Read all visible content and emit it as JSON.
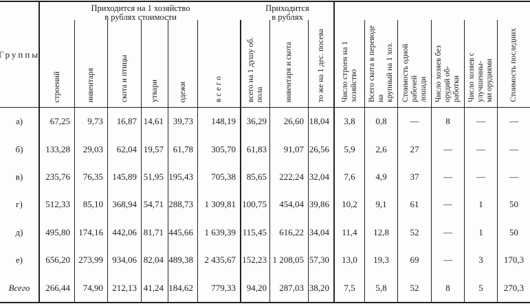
{
  "colors": {
    "ink": "#1c1c1c",
    "rule": "#222222",
    "paper": "#fdfdfd"
  },
  "table": {
    "header": {
      "corner": "Группы",
      "group1": {
        "title": "Приходится на 1 хозяйство\nв рублях стоимости",
        "cols": [
          "строений",
          "инвентаря",
          "скота и птицы",
          "утвари",
          "одежи",
          "всего"
        ]
      },
      "group2": {
        "title": "Приходится\nв рублях",
        "cols": [
          "всего на 1 душу об.\nпола",
          "инвентаря и скота",
          "то же на 1 дес. посева"
        ]
      },
      "single_cols": [
        "Число строен на 1\nхозяйство",
        "Всего скота в переводе на\nкрупный на 1 хоз.",
        "Стоимость одной рабочей\nлошади",
        "Число хозяев без орудий об-\nработки",
        "Число хозяев с улучшенны-\nми орудиями",
        "Стоимость последних"
      ]
    },
    "rows": [
      {
        "label": "а)",
        "values": [
          "67,25",
          "9,73",
          "16,87",
          "14,61",
          "39,73",
          "148,19",
          "36,29",
          "26,60",
          "18,04",
          "3,8",
          "0,8",
          "—",
          "8",
          "—",
          "—"
        ]
      },
      {
        "label": "б)",
        "values": [
          "133,28",
          "29,03",
          "62,04",
          "19,57",
          "61,78",
          "305,70",
          "61,83",
          "91,07",
          "26,56",
          "5,9",
          "2,6",
          "27",
          "—",
          "—",
          "—"
        ]
      },
      {
        "label": "в)",
        "values": [
          "235,76",
          "76,35",
          "145,89",
          "51,95",
          "195,43",
          "705,38",
          "85,65",
          "222,24",
          "32,04",
          "7,6",
          "4,9",
          "37",
          "—",
          "—",
          "—"
        ]
      },
      {
        "label": "г)",
        "values": [
          "512,33",
          "85,10",
          "368,94",
          "54,71",
          "288,73",
          "1 309,81",
          "100,75",
          "454,04",
          "39,86",
          "10,2",
          "9,1",
          "61",
          "—",
          "1",
          "50"
        ]
      },
      {
        "label": "д)",
        "values": [
          "495,80",
          "174,16",
          "442,06",
          "81,71",
          "445,66",
          "1 639,39",
          "115,45",
          "616,22",
          "34,04",
          "11,4",
          "12,8",
          "52",
          "—",
          "1",
          "50"
        ]
      },
      {
        "label": "е)",
        "values": [
          "656,20",
          "273,99",
          "934,06",
          "82,04",
          "489,38",
          "2 435,67",
          "152,23",
          "1 208,05",
          "57,30",
          "13,0",
          "19,3",
          "69",
          "—",
          "3",
          "170,3"
        ]
      },
      {
        "label": "Всего",
        "values": [
          "266,44",
          "74,90",
          "212,13",
          "41,24",
          "184,62",
          "779,33",
          "94,20",
          "287,03",
          "38,20",
          "7,5",
          "5,8",
          "52",
          "8",
          "5",
          "270,3"
        ]
      }
    ]
  }
}
